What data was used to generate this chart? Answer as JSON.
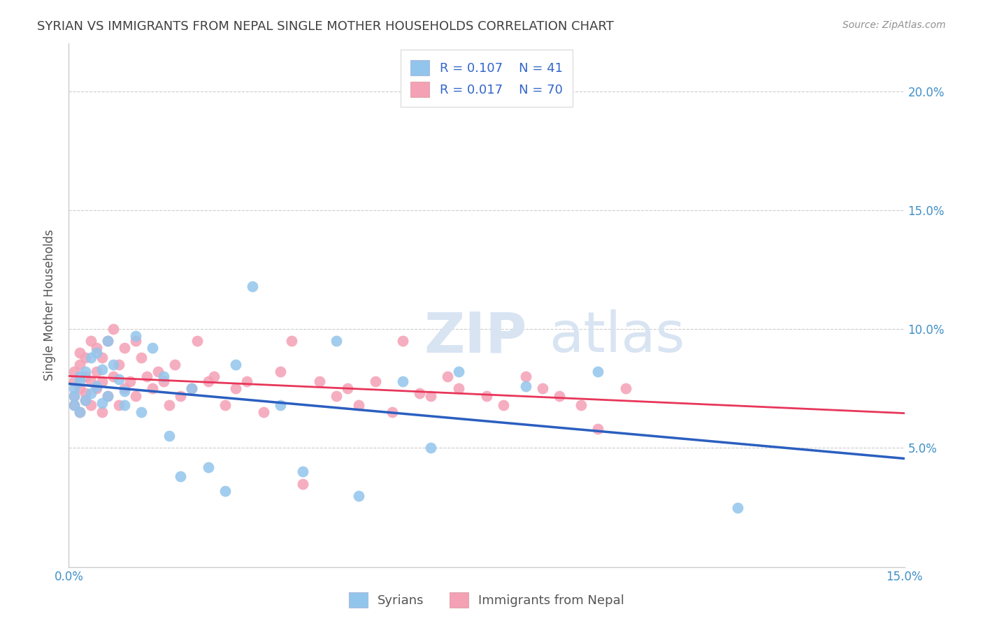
{
  "title": "SYRIAN VS IMMIGRANTS FROM NEPAL SINGLE MOTHER HOUSEHOLDS CORRELATION CHART",
  "source": "Source: ZipAtlas.com",
  "ylabel": "Single Mother Households",
  "xlabel_syrians": "Syrians",
  "xlabel_nepal": "Immigrants from Nepal",
  "xlim": [
    0.0,
    0.15
  ],
  "ylim": [
    0.0,
    0.22
  ],
  "color_syrian": "#92C5EC",
  "color_nepal": "#F4A0B5",
  "color_line_syrian": "#2B5FC0",
  "color_line_nepal": "#E8365A",
  "color_title": "#404040",
  "color_source": "#909090",
  "color_tick_labels": "#4090C8",
  "watermark_color": "#D8E4F2",
  "legend_r1": "0.107",
  "legend_n1": "41",
  "legend_r2": "0.017",
  "legend_n2": "70",
  "syrians_x": [
    0.001,
    0.001,
    0.001,
    0.002,
    0.002,
    0.002,
    0.003,
    0.003,
    0.004,
    0.004,
    0.005,
    0.005,
    0.006,
    0.006,
    0.007,
    0.007,
    0.008,
    0.009,
    0.01,
    0.01,
    0.012,
    0.013,
    0.015,
    0.017,
    0.018,
    0.02,
    0.022,
    0.025,
    0.028,
    0.03,
    0.033,
    0.038,
    0.042,
    0.048,
    0.052,
    0.06,
    0.065,
    0.07,
    0.082,
    0.095,
    0.12
  ],
  "syrians_y": [
    0.075,
    0.068,
    0.072,
    0.08,
    0.065,
    0.078,
    0.082,
    0.07,
    0.088,
    0.073,
    0.09,
    0.076,
    0.083,
    0.069,
    0.095,
    0.072,
    0.085,
    0.079,
    0.068,
    0.074,
    0.097,
    0.065,
    0.092,
    0.08,
    0.055,
    0.038,
    0.075,
    0.042,
    0.032,
    0.085,
    0.118,
    0.068,
    0.04,
    0.095,
    0.03,
    0.078,
    0.05,
    0.082,
    0.076,
    0.082,
    0.025
  ],
  "nepal_x": [
    0.001,
    0.001,
    0.001,
    0.001,
    0.002,
    0.002,
    0.002,
    0.002,
    0.003,
    0.003,
    0.003,
    0.003,
    0.004,
    0.004,
    0.004,
    0.005,
    0.005,
    0.005,
    0.006,
    0.006,
    0.006,
    0.007,
    0.007,
    0.008,
    0.008,
    0.009,
    0.009,
    0.01,
    0.01,
    0.011,
    0.012,
    0.012,
    0.013,
    0.014,
    0.015,
    0.016,
    0.017,
    0.018,
    0.019,
    0.02,
    0.022,
    0.023,
    0.025,
    0.026,
    0.028,
    0.03,
    0.032,
    0.035,
    0.038,
    0.04,
    0.042,
    0.045,
    0.048,
    0.05,
    0.052,
    0.055,
    0.058,
    0.06,
    0.063,
    0.065,
    0.068,
    0.07,
    0.075,
    0.078,
    0.082,
    0.085,
    0.088,
    0.092,
    0.095,
    0.1
  ],
  "nepal_y": [
    0.072,
    0.078,
    0.082,
    0.068,
    0.09,
    0.075,
    0.085,
    0.065,
    0.08,
    0.088,
    0.07,
    0.073,
    0.095,
    0.078,
    0.068,
    0.092,
    0.075,
    0.082,
    0.078,
    0.088,
    0.065,
    0.095,
    0.072,
    0.1,
    0.08,
    0.085,
    0.068,
    0.075,
    0.092,
    0.078,
    0.095,
    0.072,
    0.088,
    0.08,
    0.075,
    0.082,
    0.078,
    0.068,
    0.085,
    0.072,
    0.075,
    0.095,
    0.078,
    0.08,
    0.068,
    0.075,
    0.078,
    0.065,
    0.082,
    0.095,
    0.035,
    0.078,
    0.072,
    0.075,
    0.068,
    0.078,
    0.065,
    0.095,
    0.073,
    0.072,
    0.08,
    0.075,
    0.072,
    0.068,
    0.08,
    0.075,
    0.072,
    0.068,
    0.058,
    0.075
  ]
}
